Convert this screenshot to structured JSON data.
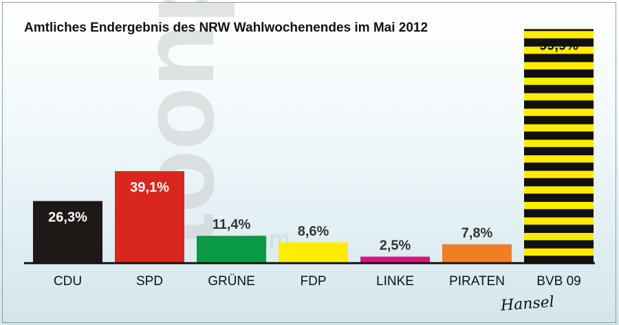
{
  "title": "Amtliches Endergebnis des NRW Wahlwochenendes im Mai 2012",
  "watermark": {
    "text": "toonpool",
    "sub": ".com"
  },
  "signature": "Hansel",
  "chart_data": {
    "type": "bar",
    "title": "Amtliches Endergebnis des NRW Wahlwochenendes im Mai 2012",
    "xlabel": "",
    "ylabel": "",
    "categories": [
      "CDU",
      "SPD",
      "GRÜNE",
      "FDP",
      "LINKE",
      "PIRATEN",
      "BVB 09"
    ],
    "values": [
      26.3,
      39.1,
      11.4,
      8.6,
      2.5,
      7.8,
      99.9
    ],
    "value_labels": [
      "26,3%",
      "39,1%",
      "11,4%",
      "8,6%",
      "2,5%",
      "7,8%",
      "99,9%"
    ],
    "colors": [
      "#1e1816",
      "#d9261e",
      "#0b9a46",
      "#ffec00",
      "#e1127e",
      "#f07e22",
      "#ffec00"
    ],
    "label_positions": [
      "inside",
      "inside",
      "above",
      "above",
      "above",
      "above",
      "inside"
    ],
    "label_colors": [
      "#ffffff",
      "#ffffff",
      "#333333",
      "#333333",
      "#333333",
      "#333333",
      "#111111"
    ],
    "striped": [
      false,
      false,
      false,
      false,
      false,
      false,
      true
    ],
    "stripe_color": "#111111",
    "ylim": [
      0,
      100
    ],
    "grid": false,
    "legend": "none"
  }
}
